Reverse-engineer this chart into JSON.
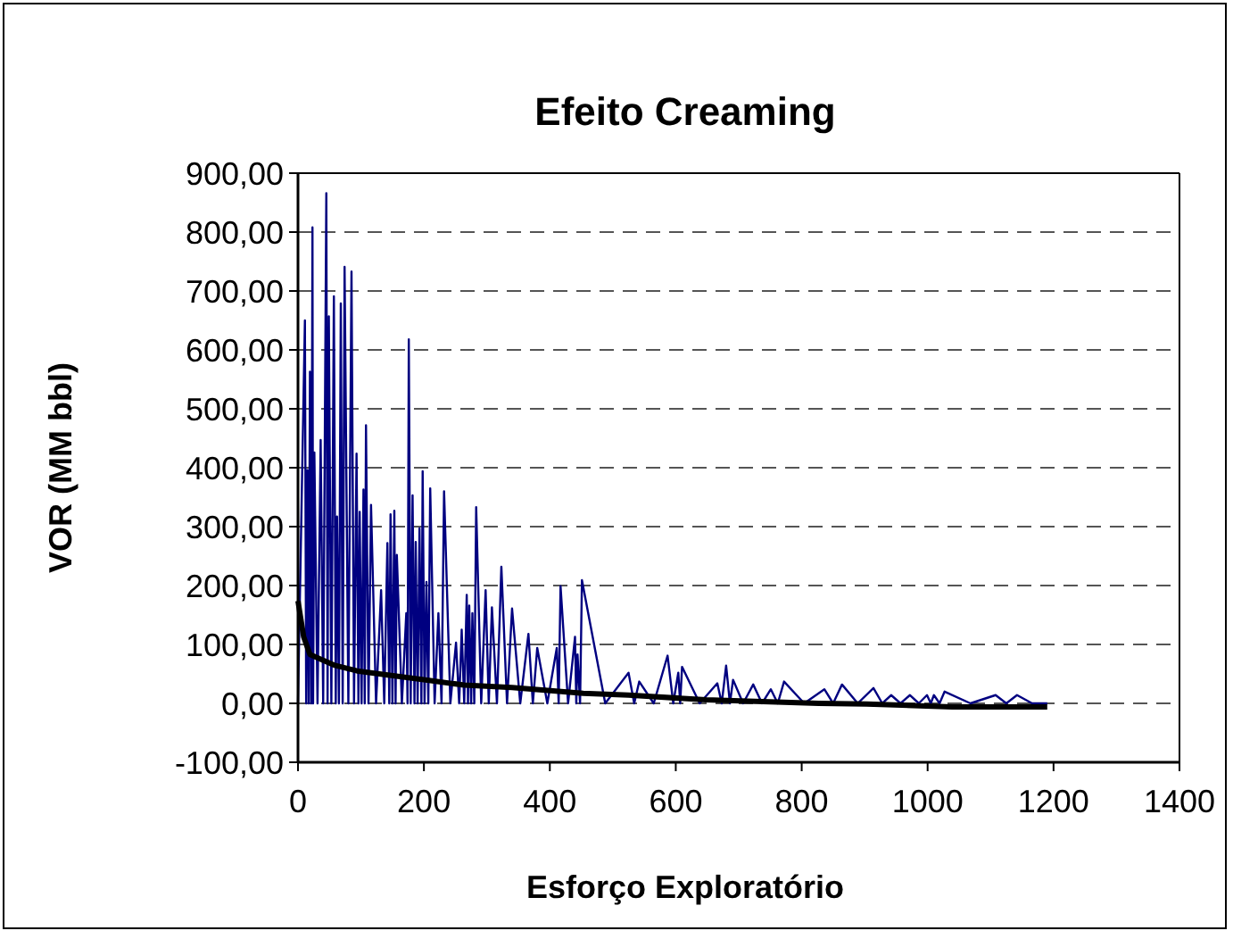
{
  "chart_data": {
    "type": "line",
    "title": "Efeito Creaming",
    "xlabel": "Esforço Exploratório",
    "ylabel": "VOR (MM bbl)",
    "xlim": [
      0,
      1400
    ],
    "xticks": [
      0,
      200,
      400,
      600,
      800,
      1000,
      1200,
      1400
    ],
    "ylim": [
      -100,
      900
    ],
    "yticks": [
      {
        "value": -100,
        "label": "-100,00"
      },
      {
        "value": 0,
        "label": "0,00"
      },
      {
        "value": 100,
        "label": "100,00"
      },
      {
        "value": 200,
        "label": "200,00"
      },
      {
        "value": 300,
        "label": "300,00"
      },
      {
        "value": 400,
        "label": "400,00"
      },
      {
        "value": 500,
        "label": "500,00"
      },
      {
        "value": 600,
        "label": "600,00"
      },
      {
        "value": 700,
        "label": "700,00"
      },
      {
        "value": 800,
        "label": "800,00"
      },
      {
        "value": 900,
        "label": "900,00"
      }
    ],
    "grid": "y",
    "marker": "none",
    "series": [
      {
        "color": "#000080",
        "x": [
          0,
          11,
          13,
          15,
          17,
          19,
          21,
          23,
          24,
          26,
          31,
          36,
          40,
          45,
          47,
          49,
          53,
          57,
          60,
          62,
          65,
          68,
          71,
          74,
          80,
          85,
          89,
          93,
          96,
          98,
          101,
          104,
          106,
          108,
          112,
          116,
          124,
          132,
          137,
          142,
          145,
          147,
          150,
          153,
          155,
          157,
          165,
          172,
          174,
          176,
          179,
          182,
          185,
          187,
          190,
          193,
          196,
          198,
          201,
          204,
          207,
          210,
          217,
          223,
          228,
          232,
          242,
          251,
          256,
          260,
          264,
          268,
          270,
          272,
          275,
          277,
          280,
          283,
          291,
          298,
          303,
          308,
          316,
          323,
          332,
          340,
          353,
          366,
          373,
          380,
          396,
          411,
          414,
          417,
          429,
          440,
          442,
          444,
          448,
          451,
          488,
          525,
          534,
          542,
          565,
          587,
          596,
          604,
          607,
          610,
          638,
          666,
          673,
          680,
          686,
          691,
          707,
          723,
          737,
          751,
          762,
          772,
          804,
          836,
          850,
          864,
          889,
          914,
          928,
          942,
          957,
          972,
          986,
          999,
          1005,
          1010,
          1019,
          1027,
          1068,
          1108,
          1125,
          1142,
          1166,
          1190
        ],
        "values": [
          0,
          650,
          0,
          396,
          0,
          563,
          0,
          808,
          0,
          426,
          0,
          447,
          0,
          866,
          0,
          657,
          0,
          691,
          0,
          317,
          0,
          679,
          0,
          741,
          0,
          733,
          0,
          424,
          0,
          325,
          0,
          363,
          0,
          472,
          0,
          337,
          0,
          192,
          0,
          272,
          0,
          321,
          0,
          327,
          0,
          252,
          0,
          153,
          0,
          618,
          0,
          353,
          0,
          274,
          0,
          297,
          0,
          394,
          0,
          206,
          0,
          365,
          0,
          153,
          0,
          360,
          0,
          103,
          0,
          125,
          0,
          184,
          0,
          166,
          0,
          153,
          0,
          333,
          0,
          192,
          0,
          163,
          0,
          232,
          0,
          161,
          0,
          118,
          0,
          94,
          0,
          94,
          0,
          199,
          0,
          113,
          0,
          83,
          0,
          209,
          0,
          52,
          0,
          37,
          0,
          81,
          0,
          52,
          0,
          62,
          0,
          34,
          0,
          64,
          0,
          40,
          0,
          32,
          0,
          24,
          0,
          37,
          0,
          24,
          0,
          32,
          0,
          26,
          0,
          14,
          0,
          14,
          0,
          14,
          0,
          14,
          0,
          20,
          0,
          14,
          0,
          14,
          0,
          0
        ]
      },
      {
        "color": "#000000",
        "x": [
          0,
          9,
          19,
          57,
          94,
          151,
          208,
          264,
          340,
          453,
          525,
          648,
          827,
          903,
          1039,
          1190
        ],
        "values": [
          174,
          113,
          83,
          65,
          55,
          47,
          39,
          31,
          27,
          17,
          14,
          6,
          0,
          -1,
          -6,
          -6
        ]
      }
    ]
  }
}
